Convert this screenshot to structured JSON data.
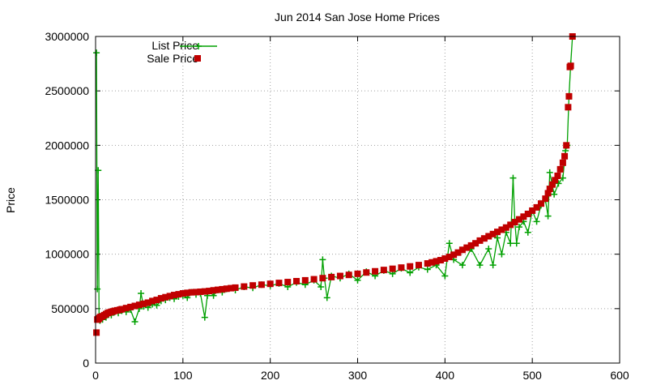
{
  "chart_data": {
    "type": "line",
    "title": "Jun 2014 San Jose Home Prices",
    "xlabel": "",
    "ylabel": "Price",
    "xlim": [
      0,
      600
    ],
    "ylim": [
      0,
      3000000
    ],
    "xticks": [
      0,
      100,
      200,
      300,
      400,
      500,
      600
    ],
    "yticks": [
      0,
      500000,
      1000000,
      1500000,
      2000000,
      2500000,
      3000000
    ],
    "grid": true,
    "legend_position": "top-left",
    "series": [
      {
        "name": "List Price",
        "color": "#00a000",
        "style": "line-with-plus-markers",
        "x": [
          1,
          2,
          3,
          4,
          5,
          6,
          8,
          10,
          12,
          14,
          18,
          22,
          26,
          30,
          35,
          40,
          45,
          50,
          52,
          55,
          60,
          65,
          70,
          75,
          80,
          85,
          90,
          95,
          100,
          105,
          110,
          115,
          120,
          125,
          128,
          130,
          135,
          140,
          145,
          150,
          160,
          170,
          180,
          190,
          200,
          210,
          220,
          230,
          240,
          250,
          258,
          260,
          262,
          265,
          270,
          280,
          290,
          300,
          310,
          320,
          330,
          340,
          350,
          360,
          370,
          380,
          390,
          400,
          405,
          410,
          420,
          430,
          440,
          450,
          455,
          460,
          465,
          470,
          475,
          478,
          480,
          482,
          485,
          490,
          495,
          500,
          505,
          510,
          515,
          518,
          520,
          525,
          530,
          535,
          538,
          540,
          542,
          544,
          546
        ],
        "values": [
          2850000,
          680000,
          1770000,
          420000,
          390000,
          430000,
          400000,
          440000,
          420000,
          460000,
          440000,
          470000,
          460000,
          480000,
          470000,
          490000,
          380000,
          500000,
          640000,
          520000,
          510000,
          540000,
          530000,
          570000,
          580000,
          600000,
          590000,
          610000,
          620000,
          600000,
          650000,
          630000,
          640000,
          420000,
          620000,
          660000,
          620000,
          670000,
          650000,
          680000,
          670000,
          700000,
          690000,
          720000,
          710000,
          730000,
          700000,
          740000,
          720000,
          760000,
          700000,
          950000,
          780000,
          600000,
          800000,
          780000,
          820000,
          760000,
          840000,
          800000,
          850000,
          820000,
          870000,
          830000,
          880000,
          860000,
          900000,
          800000,
          1100000,
          950000,
          900000,
          1050000,
          900000,
          1050000,
          900000,
          1150000,
          1000000,
          1200000,
          1100000,
          1700000,
          1300000,
          1100000,
          1250000,
          1300000,
          1200000,
          1400000,
          1300000,
          1450000,
          1500000,
          1350000,
          1750000,
          1550000,
          1650000,
          1700000,
          1950000,
          2000000,
          2450000,
          2750000,
          3000000
        ]
      },
      {
        "name": "Sale Price",
        "color": "#c00000",
        "style": "square-markers",
        "x": [
          1,
          2,
          3,
          4,
          5,
          6,
          8,
          10,
          12,
          14,
          16,
          18,
          20,
          22,
          25,
          28,
          30,
          35,
          40,
          45,
          50,
          55,
          60,
          65,
          70,
          75,
          80,
          85,
          90,
          95,
          100,
          105,
          110,
          115,
          120,
          125,
          130,
          135,
          140,
          145,
          150,
          155,
          160,
          170,
          180,
          190,
          200,
          210,
          220,
          230,
          240,
          250,
          260,
          270,
          280,
          290,
          300,
          310,
          320,
          330,
          340,
          350,
          360,
          370,
          380,
          385,
          390,
          395,
          400,
          405,
          410,
          415,
          420,
          425,
          430,
          435,
          440,
          445,
          450,
          455,
          460,
          465,
          470,
          475,
          480,
          485,
          490,
          495,
          500,
          505,
          510,
          515,
          518,
          520,
          523,
          526,
          529,
          532,
          535,
          537,
          539,
          541,
          542,
          543,
          544,
          546
        ],
        "values": [
          280000,
          400000,
          400000,
          410000,
          420000,
          425000,
          430000,
          440000,
          450000,
          460000,
          465000,
          470000,
          475000,
          480000,
          485000,
          490000,
          495000,
          505000,
          515000,
          525000,
          535000,
          545000,
          555000,
          570000,
          580000,
          595000,
          605000,
          615000,
          625000,
          632000,
          640000,
          645000,
          650000,
          652000,
          655000,
          658000,
          662000,
          668000,
          673000,
          678000,
          683000,
          688000,
          693000,
          703000,
          713000,
          720000,
          728000,
          736000,
          744000,
          752000,
          760000,
          770000,
          780000,
          790000,
          800000,
          810000,
          820000,
          832000,
          843000,
          855000,
          866000,
          877000,
          888000,
          900000,
          915000,
          925000,
          935000,
          945000,
          960000,
          975000,
          995000,
          1015000,
          1040000,
          1060000,
          1080000,
          1100000,
          1125000,
          1145000,
          1165000,
          1185000,
          1205000,
          1225000,
          1245000,
          1270000,
          1295000,
          1320000,
          1345000,
          1370000,
          1400000,
          1430000,
          1465000,
          1510000,
          1560000,
          1600000,
          1640000,
          1680000,
          1720000,
          1780000,
          1840000,
          1900000,
          2000000,
          2350000,
          2450000,
          2720000,
          2730000,
          3000000
        ]
      }
    ]
  }
}
